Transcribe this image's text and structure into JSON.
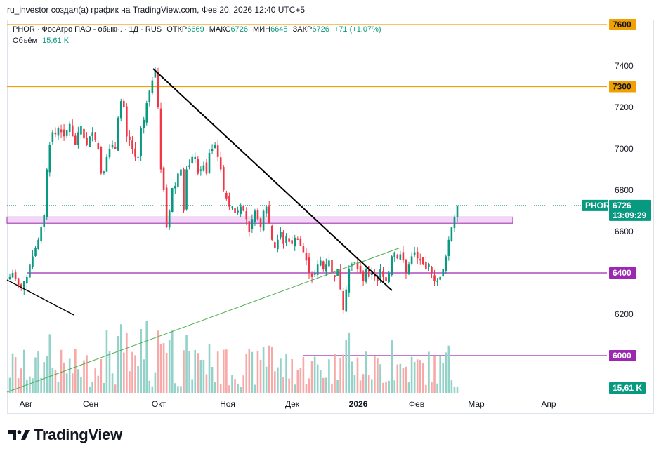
{
  "header": {
    "credit": "ru_investor создал(а) график на TradingView.com, Фев 20, 2026 12:40 UTC+5"
  },
  "legend": {
    "symbol": "PHOR · ФосАгро ПАО - обыкн. · 1Д · RUS",
    "open_label": "ОТКР",
    "open": "6669",
    "high_label": "МАКС",
    "high": "6726",
    "low_label": "МИН",
    "low": "6645",
    "close_label": "ЗАКР",
    "close": "6726",
    "change": "+71 (+1,07%)",
    "volume_label": "Объём",
    "volume": "15,61 K"
  },
  "price_axis": {
    "ticks": [
      "7400",
      "7200",
      "7000",
      "6800",
      "6600",
      "6200"
    ],
    "level_tags": [
      {
        "label": "7600",
        "color": "#f0a000",
        "text_color": "#131722"
      },
      {
        "label": "7300",
        "color": "#f0a000",
        "text_color": "#131722"
      },
      {
        "label": "6400",
        "color": "#9c27b0",
        "text_color": "#ffffff"
      },
      {
        "label": "6000",
        "color": "#9c27b0",
        "text_color": "#ffffff"
      }
    ],
    "symbol_tag": "PHOR",
    "last_price": "6726",
    "countdown": "13:09:29",
    "volume_tag": "15,61 K"
  },
  "time_axis": {
    "labels": [
      "Авг",
      "Сен",
      "Окт",
      "Ноя",
      "Дек",
      "2026",
      "Фев",
      "Мар",
      "Апр"
    ]
  },
  "brand": {
    "name": "TradingView"
  },
  "colors": {
    "up": "#089981",
    "down": "#f23645",
    "up_vol": "#92d2c8",
    "down_vol": "#f7a9a7",
    "orange": "#f0a000",
    "purple": "#9c27b0",
    "zone_fill": "#f3d6f5",
    "tag_teal": "#089981"
  },
  "chart_data": {
    "type": "candlestick",
    "symbol": "PHOR",
    "timeframe": "1D",
    "y_ticks": [
      6200,
      6400,
      6600,
      6800,
      7000,
      7200,
      7400
    ],
    "last": {
      "open": 6669,
      "high": 6726,
      "low": 6645,
      "close": 6726,
      "change": 71,
      "change_pct": 1.07,
      "volume": 15610
    },
    "horizontal_levels": [
      {
        "price": 7600,
        "color": "orange",
        "from": "Jul 2025"
      },
      {
        "price": 7300,
        "color": "orange",
        "from": "Jul 2025"
      },
      {
        "price": 6400,
        "color": "purple",
        "from": "Aug 2025"
      },
      {
        "price": 6000,
        "color": "purple",
        "from": "Dec 2025"
      }
    ],
    "zones": [
      {
        "low": 6640,
        "high": 6670,
        "from": "Jul 2025",
        "to": "Mar 2026",
        "color": "pink"
      }
    ],
    "trendlines": [
      {
        "from": [
          "2025-09-30",
          7390
        ],
        "to": [
          "2026-01-20",
          6310
        ],
        "color": "black"
      },
      {
        "from": [
          "2025-07-22",
          6370
        ],
        "to": [
          "2025-08-28",
          6190
        ],
        "color": "black"
      },
      {
        "from": [
          "2025-07-21",
          5960
        ],
        "to": [
          "2026-01-31",
          6520
        ],
        "color": "green"
      }
    ],
    "closes": [
      6380,
      6400,
      6370,
      6340,
      6330,
      6360,
      6380,
      6440,
      6480,
      6520,
      6560,
      6620,
      6680,
      6900,
      7020,
      7080,
      7070,
      7100,
      7080,
      7060,
      7090,
      7120,
      7060,
      7020,
      7080,
      7110,
      7050,
      7020,
      7060,
      7080,
      7040,
      7000,
      6880,
      6890,
      6960,
      7000,
      7020,
      7000,
      7150,
      7230,
      7200,
      7060,
      7040,
      7000,
      6960,
      6960,
      7100,
      7140,
      7220,
      7280,
      7330,
      7380,
      7200,
      6900,
      6800,
      6620,
      6700,
      6810,
      6820,
      6880,
      6900,
      6700,
      6900,
      6920,
      6960,
      6960,
      6880,
      6900,
      6920,
      6880,
      6980,
      7000,
      7020,
      6960,
      6900,
      6800,
      6760,
      6720,
      6720,
      6690,
      6700,
      6720,
      6700,
      6660,
      6600,
      6660,
      6700,
      6660,
      6620,
      6700,
      6720,
      6640,
      6560,
      6520,
      6560,
      6600,
      6540,
      6580,
      6550,
      6540,
      6570,
      6560,
      6530,
      6500,
      6460,
      6400,
      6380,
      6400,
      6440,
      6460,
      6420,
      6440,
      6460,
      6400,
      6380,
      6420,
      6320,
      6220,
      6320,
      6420,
      6440,
      6450,
      6420,
      6400,
      6360,
      6420,
      6380,
      6400,
      6380,
      6360,
      6420,
      6380,
      6360,
      6400,
      6480,
      6500,
      6470,
      6490,
      6460,
      6400,
      6440,
      6480,
      6500,
      6470,
      6460,
      6440,
      6420,
      6440,
      6400,
      6360,
      6360,
      6380,
      6420,
      6480,
      6560,
      6620,
      6669,
      6726
    ]
  }
}
